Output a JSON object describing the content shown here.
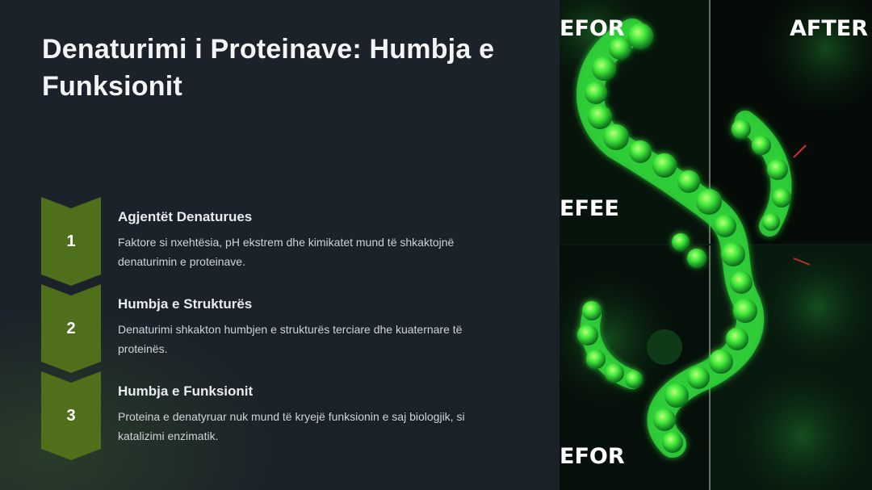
{
  "slide": {
    "title": "Denaturimi i Proteinave: Humbja e Funksionit",
    "steps": [
      {
        "number": "1",
        "title": "Agjentët Denaturues",
        "description": "Faktore si nxehtësia, pH ekstrem dhe kimikatet mund të shkaktojnë denaturimin e proteinave."
      },
      {
        "number": "2",
        "title": "Humbja e Strukturës",
        "description": "Denaturimi shkakton humbjen e strukturës terciare dhe kuaternare të proteinës."
      },
      {
        "number": "3",
        "title": "Humbja e Funksionit",
        "description": "Proteina e denatyruar nuk mund të kryejë funksionin e saj biologjik, si katalizimi enzimatik."
      }
    ]
  },
  "image": {
    "labels": {
      "top_left": "EFOR",
      "top_right": "AFTER",
      "middle_left": "EFEE",
      "bottom_left": "EFOR"
    }
  },
  "colors": {
    "background": "#1b2128",
    "chevron": "#4f6f1b",
    "protein_glow": "#39ff3a"
  }
}
